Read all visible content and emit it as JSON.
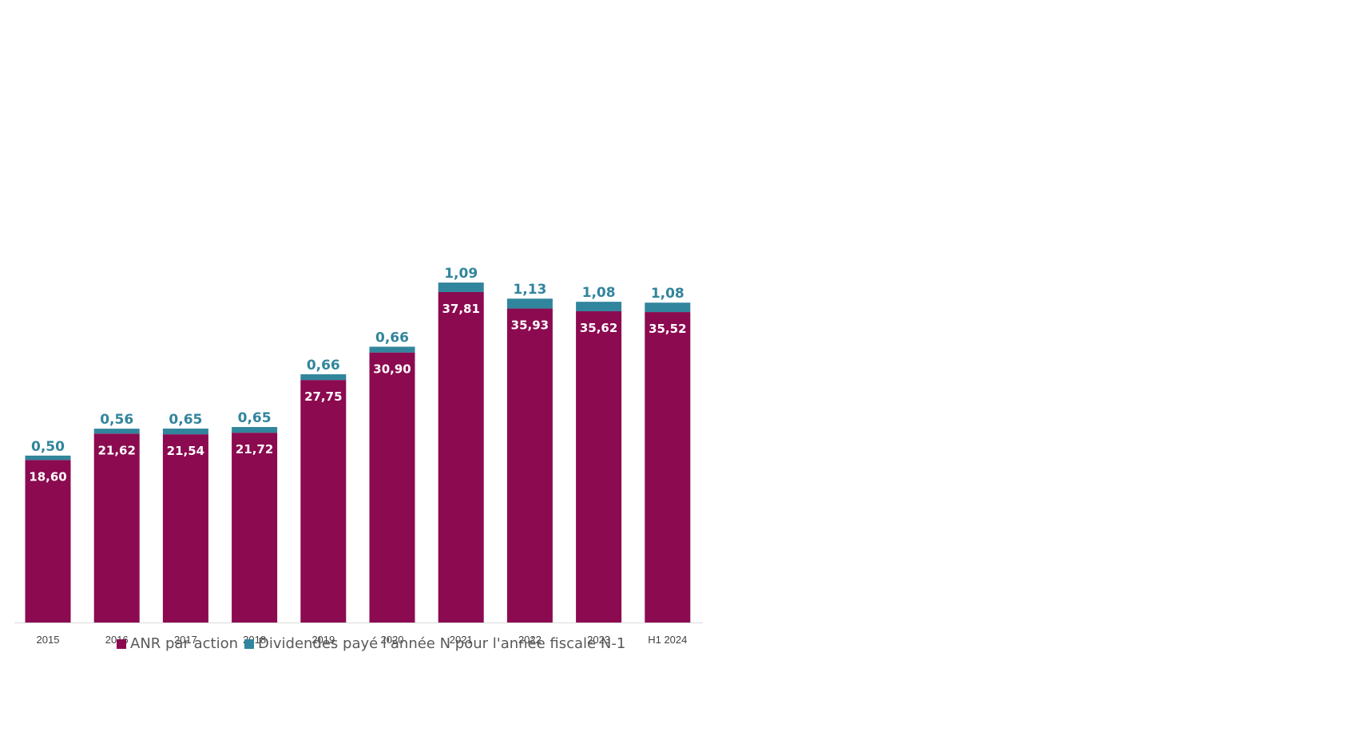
{
  "chart_data": {
    "type": "bar",
    "stacked": true,
    "categories": [
      "2015",
      "2016",
      "2017",
      "2018",
      "2019",
      "2020",
      "2021",
      "2022",
      "2023",
      "H1 2024"
    ],
    "series": [
      {
        "name": "ANR par action",
        "color": "#8B0A50",
        "values": [
          18.6,
          21.62,
          21.54,
          21.72,
          27.75,
          30.9,
          37.81,
          35.93,
          35.62,
          35.52
        ],
        "labels": [
          "18,60",
          "21,62",
          "21,54",
          "21,72",
          "27,75",
          "30,90",
          "37,81",
          "35,93",
          "35,62",
          "35,52"
        ]
      },
      {
        "name": "Dividendes payé l'année N pour l'année fiscale N-1",
        "color": "#31859C",
        "values": [
          0.5,
          0.56,
          0.65,
          0.65,
          0.66,
          0.66,
          1.09,
          1.13,
          1.08,
          1.08
        ],
        "labels": [
          "0,50",
          "0,56",
          "0,65",
          "0,65",
          "0,66",
          "0,66",
          "1,09",
          "1,13",
          "1,08",
          "1,08"
        ]
      }
    ],
    "ylim": [
      0,
      40
    ],
    "grid": false,
    "legend_position": "bottom",
    "title": "",
    "xlabel": "",
    "ylabel": ""
  }
}
